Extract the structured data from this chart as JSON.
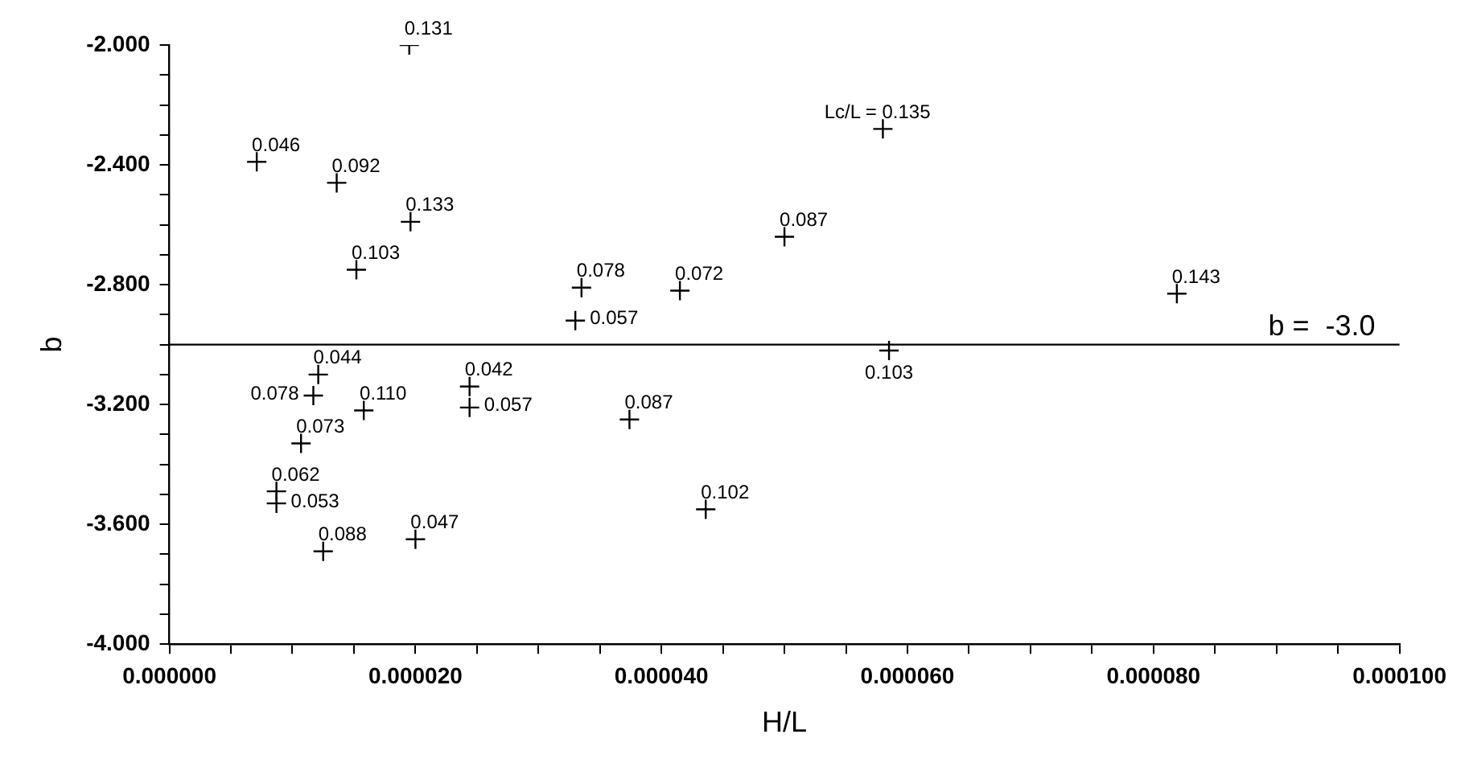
{
  "chart_data": {
    "type": "scatter",
    "xlabel": "H/L",
    "ylabel": "b",
    "marker": "cross",
    "grid": false,
    "legend": false,
    "xlim": [
      0,
      0.0001
    ],
    "ylim": [
      -4,
      -2
    ],
    "xticks": [
      {
        "value": 0,
        "label": "0.000000"
      },
      {
        "value": 5e-06,
        "label": null
      },
      {
        "value": 1e-05,
        "label": null
      },
      {
        "value": 1.5e-05,
        "label": null
      },
      {
        "value": 2e-05,
        "label": "0.000020"
      },
      {
        "value": 2.5e-05,
        "label": null
      },
      {
        "value": 3e-05,
        "label": null
      },
      {
        "value": 3.5e-05,
        "label": null
      },
      {
        "value": 4e-05,
        "label": "0.000040"
      },
      {
        "value": 4.5e-05,
        "label": null
      },
      {
        "value": 5e-05,
        "label": null
      },
      {
        "value": 5.5e-05,
        "label": null
      },
      {
        "value": 6e-05,
        "label": "0.000060"
      },
      {
        "value": 6.5e-05,
        "label": null
      },
      {
        "value": 7e-05,
        "label": null
      },
      {
        "value": 7.5e-05,
        "label": null
      },
      {
        "value": 8e-05,
        "label": "0.000080"
      },
      {
        "value": 8.5e-05,
        "label": null
      },
      {
        "value": 9e-05,
        "label": null
      },
      {
        "value": 9.5e-05,
        "label": null
      },
      {
        "value": 0.0001,
        "label": "0.000100"
      }
    ],
    "yticks": [
      {
        "value": -4,
        "label": "-4.000"
      },
      {
        "value": -3.9,
        "label": null
      },
      {
        "value": -3.8,
        "label": null
      },
      {
        "value": -3.7,
        "label": null
      },
      {
        "value": -3.6,
        "label": "-3.600"
      },
      {
        "value": -3.5,
        "label": null
      },
      {
        "value": -3.4,
        "label": null
      },
      {
        "value": -3.3,
        "label": null
      },
      {
        "value": -3.2,
        "label": "-3.200"
      },
      {
        "value": -3.1,
        "label": null
      },
      {
        "value": -3,
        "label": null
      },
      {
        "value": -2.9,
        "label": null
      },
      {
        "value": -2.8,
        "label": "-2.800"
      },
      {
        "value": -2.7,
        "label": null
      },
      {
        "value": -2.6,
        "label": null
      },
      {
        "value": -2.5,
        "label": null
      },
      {
        "value": -2.4,
        "label": "-2.400"
      },
      {
        "value": -2.3,
        "label": null
      },
      {
        "value": -2.2,
        "label": null
      },
      {
        "value": -2.1,
        "label": null
      },
      {
        "value": -2,
        "label": "-2.000"
      }
    ],
    "ref_lines": [
      {
        "axis": "y",
        "value": -3.0,
        "label": "b =  -3.0",
        "color": "#000000"
      }
    ],
    "series": [
      {
        "color": "#000000",
        "x": [
          1.95e-05,
          7.1e-06,
          1.36e-05,
          1.96e-05,
          1.52e-05,
          3.35e-05,
          3.3e-05,
          4.15e-05,
          5.8e-05,
          5e-05,
          8.19e-05,
          5.85e-05,
          1.21e-05,
          1.17e-05,
          1.58e-05,
          2.44e-05,
          2.44e-05,
          3.74e-05,
          1.07e-05,
          8.7e-06,
          8.7e-06,
          1.25e-05,
          2e-05,
          4.36e-05
        ],
        "values": [
          -2.0,
          -2.39,
          -2.46,
          -2.59,
          -2.75,
          -2.81,
          -2.92,
          -2.82,
          -2.28,
          -2.64,
          -2.83,
          -3.02,
          -3.1,
          -3.17,
          -3.22,
          -3.14,
          -3.21,
          -3.25,
          -3.33,
          -3.49,
          -3.53,
          -3.69,
          -3.65,
          -3.55
        ]
      }
    ],
    "annotations": [
      {
        "text": "0.131",
        "x": 1.95e-05,
        "y": -2.0
      },
      {
        "text": "0.046",
        "x": 7.1e-06,
        "y": -2.39
      },
      {
        "text": "0.092",
        "x": 1.36e-05,
        "y": -2.46
      },
      {
        "text": "0.133",
        "x": 1.96e-05,
        "y": -2.59
      },
      {
        "text": "0.103",
        "x": 1.52e-05,
        "y": -2.75
      },
      {
        "text": "0.078",
        "x": 3.35e-05,
        "y": -2.81
      },
      {
        "text": "0.057",
        "x": 3.3e-05,
        "y": -2.92
      },
      {
        "text": "0.072",
        "x": 4.15e-05,
        "y": -2.82
      },
      {
        "text": "Lc/L = 0.135",
        "x": 5.8e-05,
        "y": -2.28
      },
      {
        "text": "0.087",
        "x": 5e-05,
        "y": -2.64
      },
      {
        "text": "0.143",
        "x": 8.19e-05,
        "y": -2.83
      },
      {
        "text": "0.103",
        "x": 5.85e-05,
        "y": -3.02
      },
      {
        "text": "0.044",
        "x": 1.21e-05,
        "y": -3.1
      },
      {
        "text": "0.078",
        "x": 1.17e-05,
        "y": -3.17
      },
      {
        "text": "0.110",
        "x": 1.58e-05,
        "y": -3.22
      },
      {
        "text": "0.042",
        "x": 2.44e-05,
        "y": -3.14
      },
      {
        "text": "0.057",
        "x": 2.44e-05,
        "y": -3.21
      },
      {
        "text": "0.087",
        "x": 3.74e-05,
        "y": -3.25
      },
      {
        "text": "0.073",
        "x": 1.07e-05,
        "y": -3.33
      },
      {
        "text": "0.062",
        "x": 8.7e-06,
        "y": -3.49
      },
      {
        "text": "0.053",
        "x": 8.7e-06,
        "y": -3.53
      },
      {
        "text": "0.088",
        "x": 1.25e-05,
        "y": -3.69
      },
      {
        "text": "0.047",
        "x": 2e-05,
        "y": -3.65
      },
      {
        "text": "0.102",
        "x": 4.36e-05,
        "y": -3.55
      }
    ]
  }
}
